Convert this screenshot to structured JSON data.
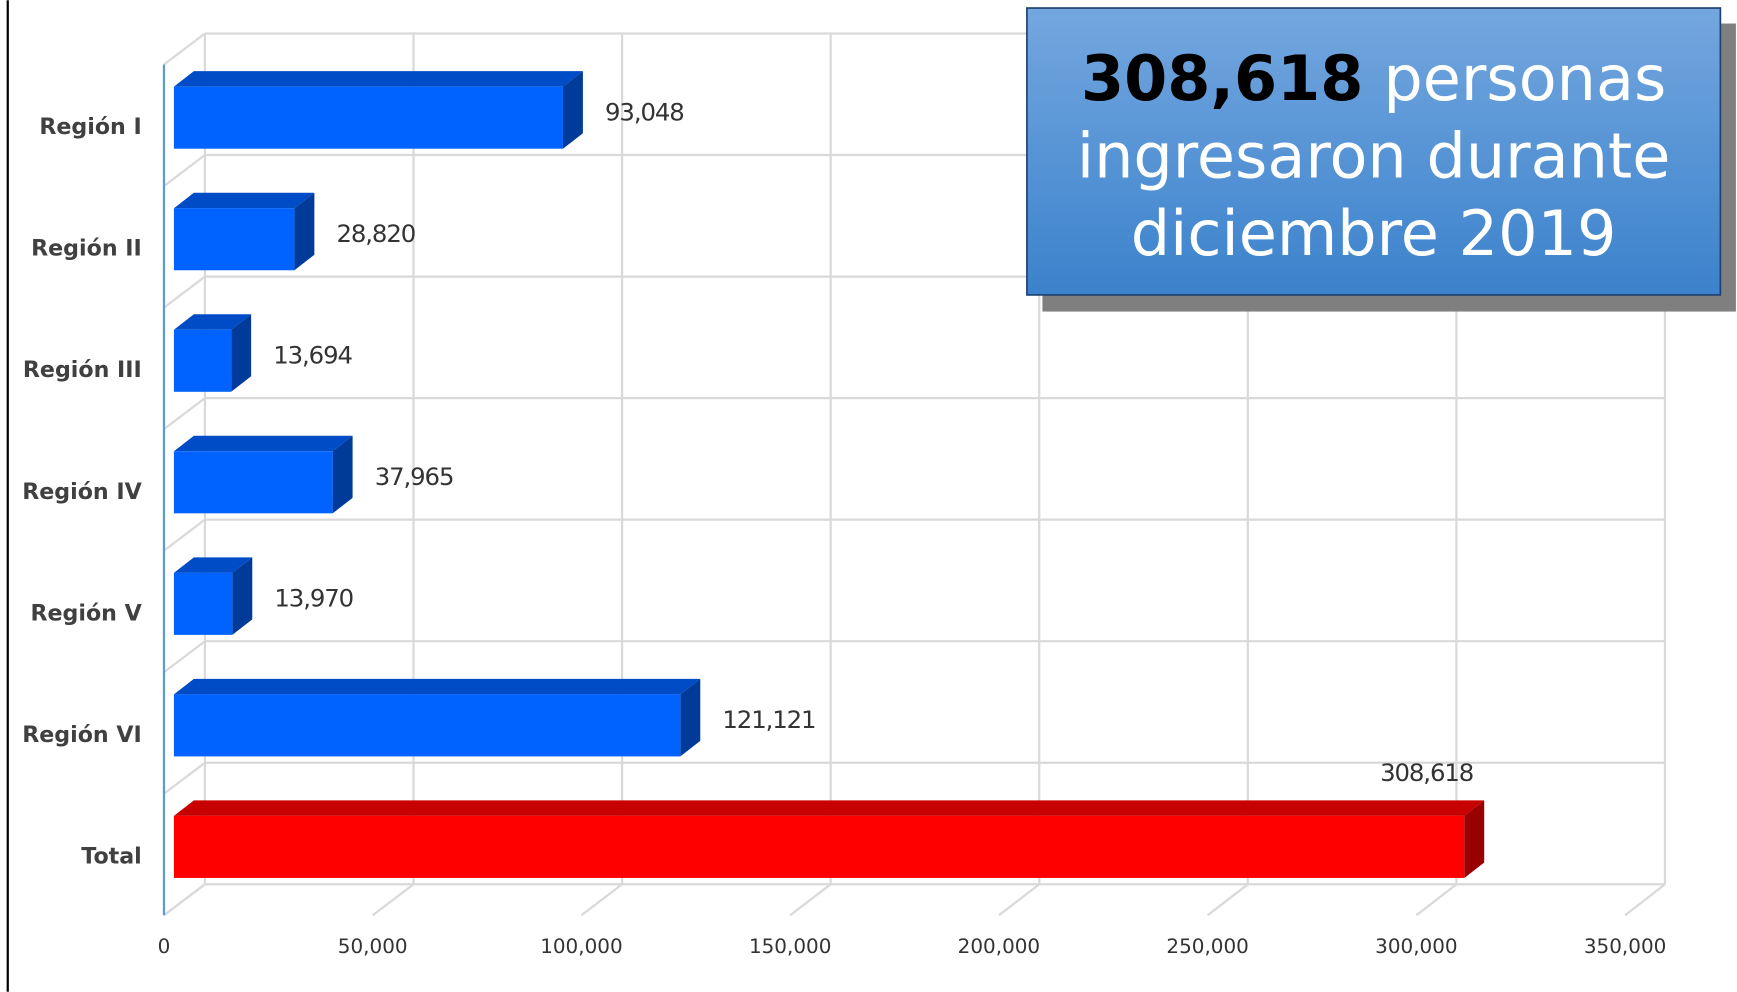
{
  "chart_data": {
    "type": "bar3d",
    "categories": [
      "Región I",
      "Región II",
      "Región III",
      "Región IV",
      "Región V",
      "Región VI",
      "Total"
    ],
    "values": [
      93048,
      28820,
      13694,
      37965,
      13970,
      121121,
      308618
    ],
    "value_labels": [
      "93,048",
      "28,820",
      "13,694",
      "37,965",
      "13,970",
      "121,121",
      "308,618"
    ],
    "colors": [
      "#0062ff",
      "#0062ff",
      "#0062ff",
      "#0062ff",
      "#0062ff",
      "#0062ff",
      "#ff0000"
    ],
    "xlim": [
      0,
      350000
    ],
    "xticks": [
      0,
      {
        "value": 50000,
        "label": "50,000"
      },
      {
        "value": 100000,
        "label": "100,000"
      },
      {
        "value": 150000,
        "label": "150,000"
      },
      {
        "value": 200000,
        "label": "200,000"
      },
      {
        "value": 250000,
        "label": "250,000"
      },
      {
        "value": 300000,
        "label": "300,000"
      },
      {
        "value": 350000,
        "label": "350,000"
      }
    ],
    "grid": true,
    "annotation": {
      "highlight": "308,618",
      "lines": [
        "personas",
        "ingresaron durante",
        "diciembre 2019"
      ]
    }
  }
}
